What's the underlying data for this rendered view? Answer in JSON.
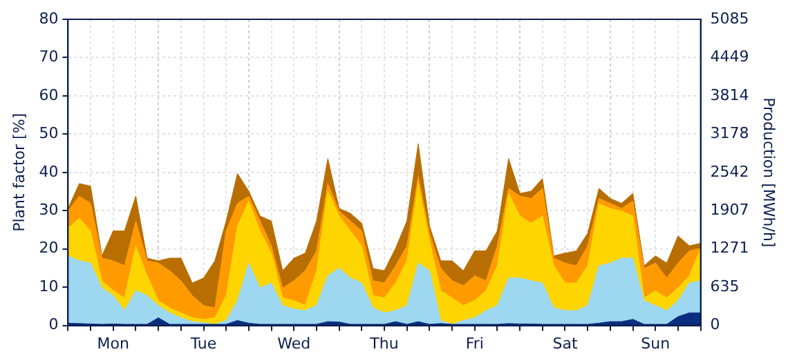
{
  "chart_data": {
    "type": "area",
    "stacked": true,
    "legend": false,
    "grid": true,
    "marker": "none",
    "ylabel": "Plant factor [%]",
    "y2label": "Production [MWh/h]",
    "categories": [
      null,
      null,
      null,
      null,
      "Mon",
      null,
      null,
      null,
      null,
      null,
      null,
      null,
      "Tue",
      null,
      null,
      null,
      null,
      null,
      null,
      null,
      "Wed",
      null,
      null,
      null,
      null,
      null,
      null,
      null,
      "Thu",
      null,
      null,
      null,
      null,
      null,
      null,
      null,
      "Fri",
      null,
      null,
      null,
      null,
      null,
      null,
      null,
      "Sat",
      null,
      null,
      null,
      null,
      null,
      null,
      null,
      "Sun",
      null,
      null,
      null,
      null
    ],
    "ylim": [
      0,
      80
    ],
    "yticks": [
      0,
      10,
      20,
      30,
      40,
      50,
      60,
      70,
      80
    ],
    "y2lim": [
      0,
      5085
    ],
    "y2ticks": [
      0,
      635,
      1271,
      1907,
      2542,
      3178,
      3814,
      4449,
      5085
    ],
    "series": [
      {
        "color": "#0a2d80",
        "values": [
          0.6,
          0.5,
          0.4,
          0.3,
          0.4,
          0.3,
          0.3,
          0.3,
          2.0,
          0.3,
          0.3,
          0.3,
          0.3,
          0.3,
          0.3,
          1.3,
          0.6,
          0.3,
          0.3,
          0.3,
          0.3,
          0.3,
          0.3,
          1.0,
          0.9,
          0.3,
          0.3,
          0.3,
          0.3,
          1.0,
          0.3,
          1.0,
          0.3,
          0.5,
          0.3,
          0.3,
          0.3,
          0.3,
          0.3,
          0.5,
          0.4,
          0.4,
          0.3,
          0.3,
          0.3,
          0.3,
          0.3,
          0.6,
          1.0,
          1.0,
          1.6,
          0.3,
          0.3,
          0.3,
          2.3,
          3.3,
          3.3
        ]
      },
      {
        "color": "#9dd8f0",
        "values": [
          17.6,
          16.4,
          15.9,
          9.5,
          7.4,
          3.6,
          8.8,
          7.5,
          3.2,
          3.0,
          1.7,
          0.7,
          0.4,
          0,
          1.0,
          5.2,
          15.7,
          9.5,
          10.8,
          4.9,
          4.0,
          3.6,
          4.9,
          12.0,
          14.1,
          12.1,
          10.8,
          4.3,
          3.0,
          2.9,
          4.9,
          15.3,
          14.0,
          0.8,
          0,
          1.0,
          1.7,
          3.6,
          4.9,
          11.9,
          12.0,
          11.3,
          10.8,
          4.3,
          3.6,
          3.6,
          4.9,
          15.0,
          15.3,
          16.6,
          16.0,
          6.2,
          4.9,
          3.6,
          4.2,
          7.8,
          8.4
        ]
      },
      {
        "color": "#ffd500",
        "values": [
          7.2,
          11.1,
          8.4,
          1.9,
          1.3,
          3.3,
          11.7,
          5.2,
          1.3,
          1.3,
          1.3,
          1.0,
          0.9,
          1.7,
          6.5,
          19.5,
          16.2,
          14.9,
          7.8,
          2.0,
          2.2,
          1.3,
          9.1,
          22.1,
          13.6,
          12.3,
          9.7,
          3.2,
          3.9,
          7.2,
          11.7,
          20.8,
          7.8,
          7.8,
          6.9,
          3.9,
          4.5,
          5.2,
          10.4,
          22.1,
          16.2,
          15.0,
          17.5,
          11.0,
          7.2,
          7.2,
          10.4,
          16.3,
          14.3,
          12.3,
          11.0,
          0.7,
          3.9,
          3.3,
          3.3,
          1.9,
          8.5
        ]
      },
      {
        "color": "#ff9a00",
        "values": [
          4.5,
          5.8,
          7.2,
          5.9,
          7.8,
          8.4,
          6.5,
          3.9,
          9.8,
          9.7,
          8.4,
          5.8,
          3.6,
          2.6,
          16.9,
          5.9,
          1.3,
          2.6,
          1.9,
          2.6,
          5.2,
          9.1,
          5.2,
          2.0,
          1.3,
          2.6,
          3.9,
          3.9,
          3.9,
          4.5,
          3.9,
          1.9,
          2.0,
          5.8,
          4.5,
          5.2,
          6.5,
          2.6,
          5.2,
          1.3,
          5.2,
          6.5,
          7.2,
          2.0,
          5.2,
          4.5,
          5.2,
          1.3,
          1.3,
          0.7,
          3.9,
          7.7,
          7.2,
          5.2,
          6.5,
          6.5,
          0
        ]
      },
      {
        "color": "#b86e00",
        "values": [
          0.7,
          3.3,
          4.5,
          0.6,
          7.8,
          9.1,
          6.5,
          0.7,
          0.6,
          3.3,
          5.9,
          3.3,
          7.2,
          12.3,
          2.6,
          7.8,
          1.3,
          1.3,
          6.5,
          4.5,
          5.9,
          4.6,
          7.8,
          6.5,
          0.7,
          2.0,
          2.0,
          3.2,
          3.2,
          4.6,
          6.5,
          8.5,
          1.9,
          2.0,
          5.2,
          3.9,
          6.5,
          7.8,
          3.9,
          7.8,
          0.7,
          1.9,
          2.6,
          0.6,
          2.6,
          3.9,
          3.3,
          2.6,
          1.3,
          1.3,
          2.0,
          0.7,
          1.9,
          3.9,
          7.1,
          1.3,
          1.3
        ]
      }
    ]
  }
}
